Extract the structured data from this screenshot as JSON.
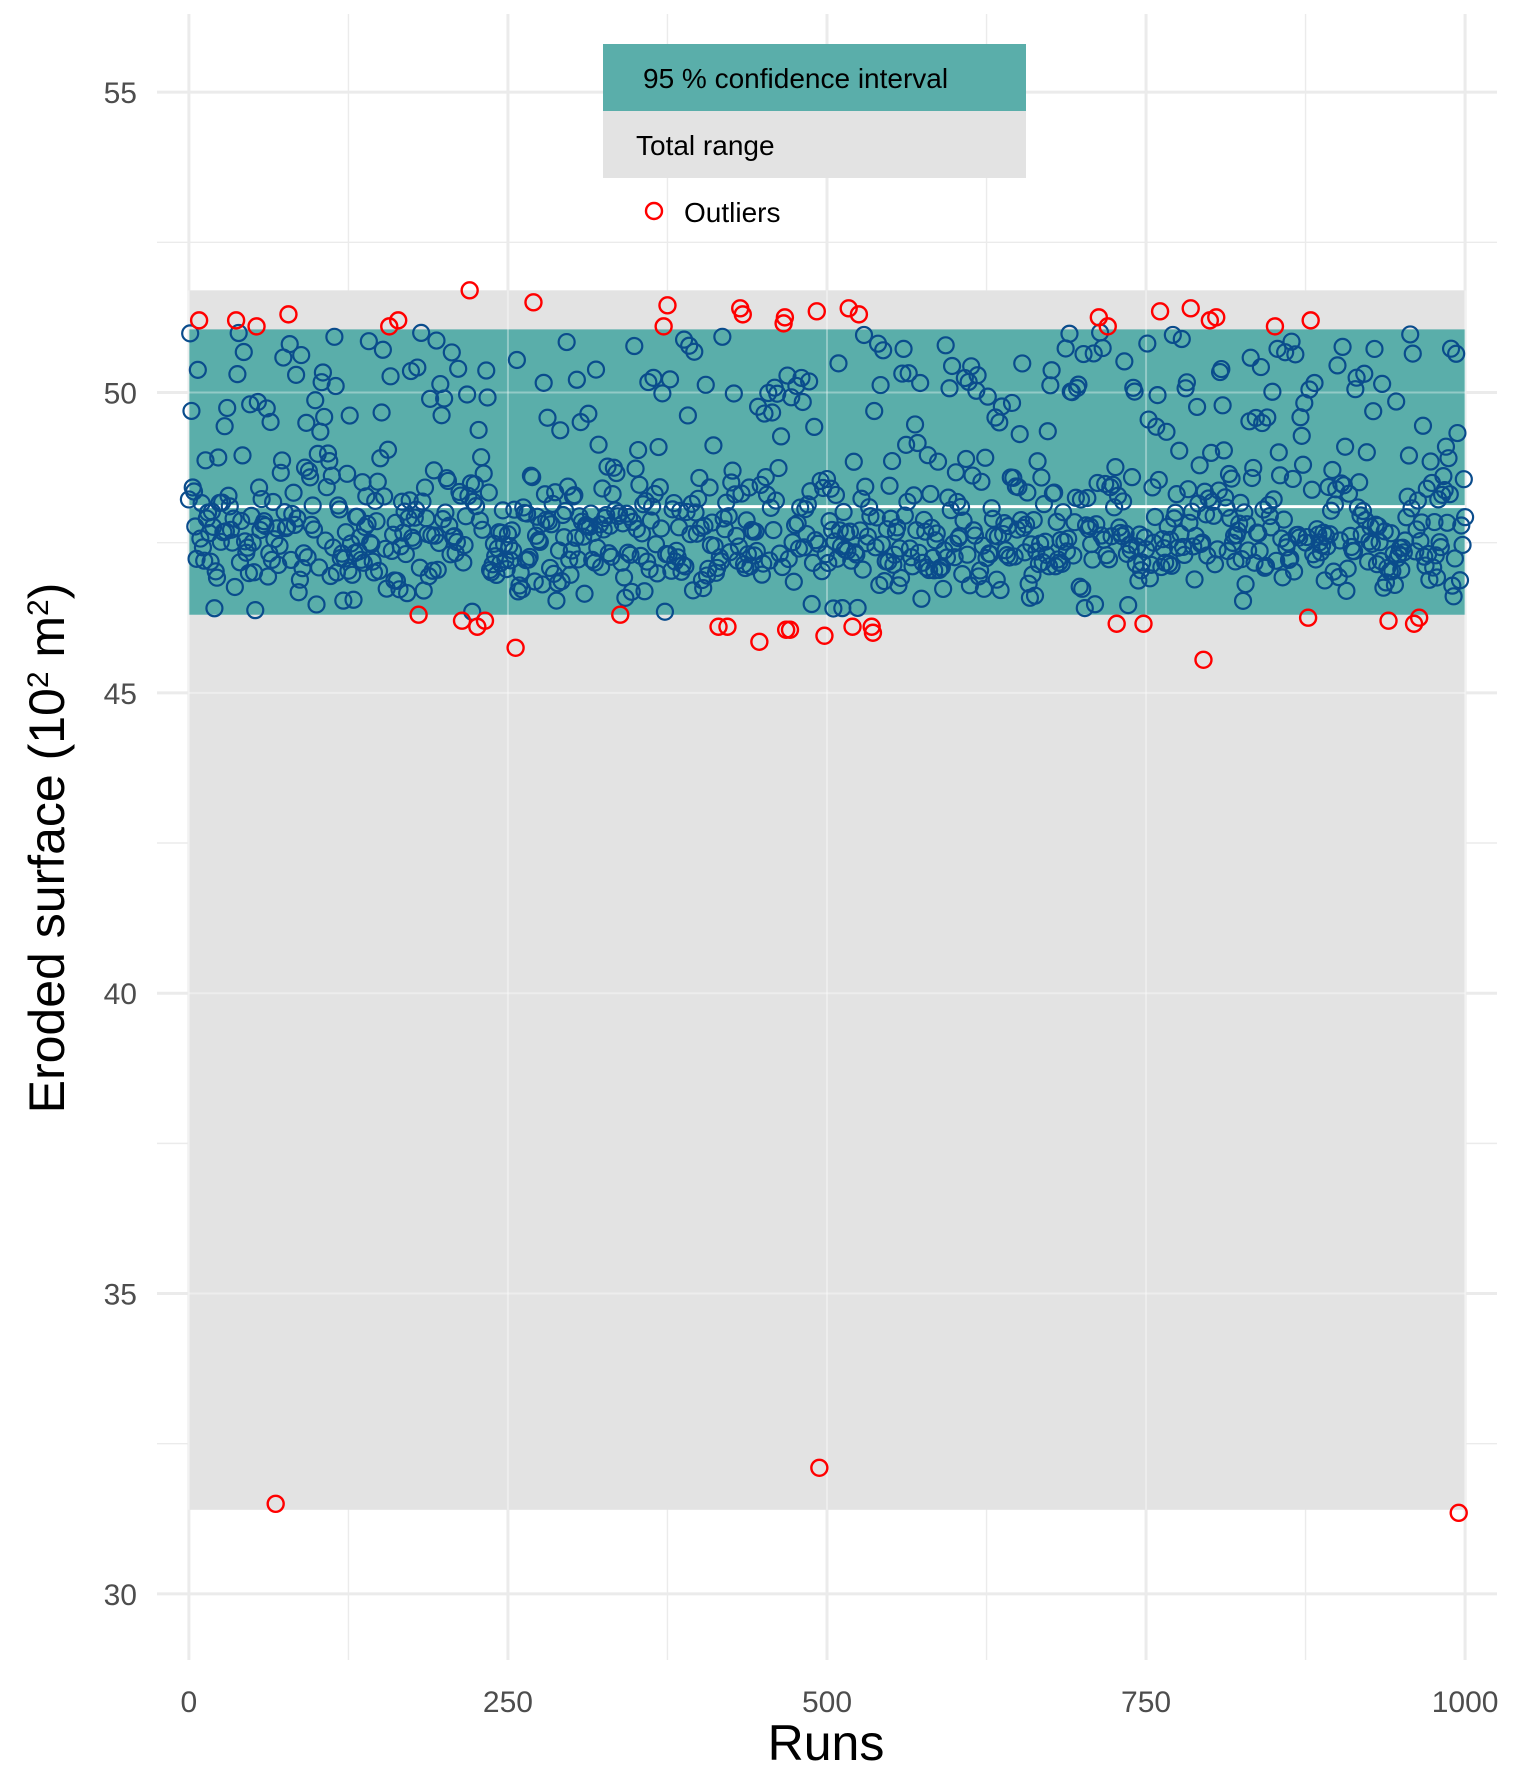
{
  "chart_data": {
    "type": "scatter",
    "title": "",
    "xlabel": "Runs",
    "ylabel_main": "Eroded surface (10",
    "ylabel_sup1": "2",
    "ylabel_mid": " m",
    "ylabel_sup2": "2",
    "ylabel_end": ")",
    "xlim": [
      -25,
      1025
    ],
    "ylim": [
      28.9,
      56.3
    ],
    "x_ticks": [
      0,
      250,
      500,
      750,
      1000
    ],
    "x_tick_labels": [
      "0",
      "250",
      "500",
      "750",
      "1000"
    ],
    "y_ticks": [
      30,
      35,
      40,
      45,
      50,
      55
    ],
    "y_tick_labels": [
      "30",
      "35",
      "40",
      "45",
      "50",
      "55"
    ],
    "grid": true,
    "n_runs": 1000,
    "total_range": [
      31.4,
      51.7
    ],
    "confidence_interval_95": [
      46.3,
      51.05
    ],
    "mean": 48.1,
    "legend": {
      "placement": "top-center",
      "entries": [
        "95 % confidence interval",
        "Total range",
        "Outliers"
      ]
    },
    "colors": {
      "confidence_band": "#5aaeaa",
      "total_range": "#e3e3e3",
      "mean_line": "#ffffff",
      "points": "#0a4c8c",
      "outliers": "#ff0000",
      "grid": "#ebebeb"
    },
    "outliers": [
      {
        "x": 8,
        "y": 51.2
      },
      {
        "x": 37,
        "y": 51.2
      },
      {
        "x": 53,
        "y": 51.1
      },
      {
        "x": 68,
        "y": 31.5
      },
      {
        "x": 78,
        "y": 51.3
      },
      {
        "x": 157,
        "y": 51.1
      },
      {
        "x": 164,
        "y": 51.2
      },
      {
        "x": 180,
        "y": 46.3
      },
      {
        "x": 214,
        "y": 46.2
      },
      {
        "x": 220,
        "y": 51.7
      },
      {
        "x": 226,
        "y": 46.1
      },
      {
        "x": 232,
        "y": 46.2
      },
      {
        "x": 256,
        "y": 45.75
      },
      {
        "x": 270,
        "y": 51.5
      },
      {
        "x": 338,
        "y": 46.3
      },
      {
        "x": 372,
        "y": 51.1
      },
      {
        "x": 375,
        "y": 51.45
      },
      {
        "x": 415,
        "y": 46.1
      },
      {
        "x": 422,
        "y": 46.1
      },
      {
        "x": 432,
        "y": 51.4
      },
      {
        "x": 434,
        "y": 51.3
      },
      {
        "x": 447,
        "y": 45.85
      },
      {
        "x": 466,
        "y": 51.15
      },
      {
        "x": 467,
        "y": 51.25
      },
      {
        "x": 468,
        "y": 46.05
      },
      {
        "x": 471,
        "y": 46.05
      },
      {
        "x": 492,
        "y": 51.35
      },
      {
        "x": 494,
        "y": 32.1
      },
      {
        "x": 498,
        "y": 45.95
      },
      {
        "x": 517,
        "y": 51.4
      },
      {
        "x": 520,
        "y": 46.1
      },
      {
        "x": 525,
        "y": 51.3
      },
      {
        "x": 535,
        "y": 46.1
      },
      {
        "x": 536,
        "y": 46.0
      },
      {
        "x": 713,
        "y": 51.25
      },
      {
        "x": 720,
        "y": 51.1
      },
      {
        "x": 727,
        "y": 46.15
      },
      {
        "x": 748,
        "y": 46.15
      },
      {
        "x": 761,
        "y": 51.35
      },
      {
        "x": 785,
        "y": 51.4
      },
      {
        "x": 795,
        "y": 45.55
      },
      {
        "x": 800,
        "y": 51.2
      },
      {
        "x": 805,
        "y": 51.25
      },
      {
        "x": 851,
        "y": 51.1
      },
      {
        "x": 877,
        "y": 46.25
      },
      {
        "x": 879,
        "y": 51.2
      },
      {
        "x": 940,
        "y": 46.2
      },
      {
        "x": 960,
        "y": 46.15
      },
      {
        "x": 964,
        "y": 46.25
      },
      {
        "x": 995,
        "y": 31.35
      }
    ]
  }
}
